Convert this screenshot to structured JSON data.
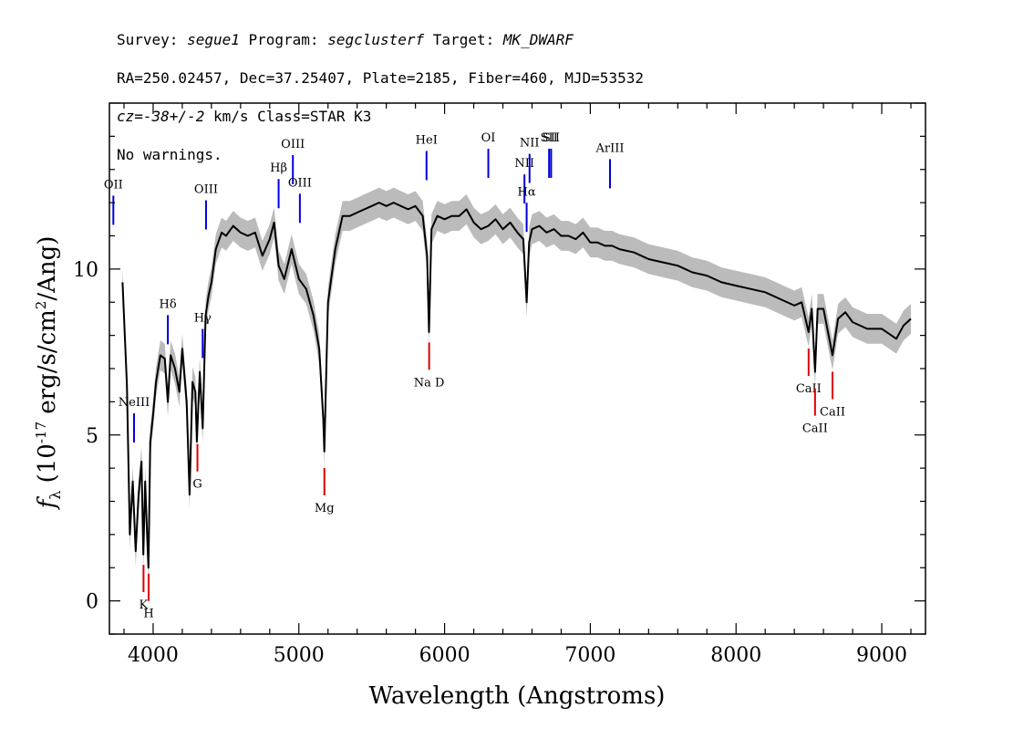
{
  "header": {
    "line1": {
      "survey_label": "Survey: ",
      "survey": "segue1",
      "program_label": " Program: ",
      "program": "segclusterf",
      "target_label": " Target: ",
      "target": "MK_DWARF"
    },
    "line2": "RA=250.02457, Dec=37.25407, Plate=2185, Fiber=460, MJD=53532",
    "line3": {
      "cz_label": "cz",
      "cz_value": "=-38+/-2",
      "rest": " km/s Class=STAR K3"
    },
    "line4": "No warnings."
  },
  "chart_data": {
    "type": "line",
    "xlabel": "Wavelength (Angstroms)",
    "ylabel": "f_λ (10^-17 erg/s/cm^2/Ang)",
    "xlim": [
      3700,
      9300
    ],
    "ylim": [
      -1,
      15
    ],
    "x_ticks": [
      4000,
      5000,
      6000,
      7000,
      8000,
      9000
    ],
    "y_ticks": [
      0,
      5,
      10
    ],
    "grid": false,
    "series": [
      {
        "color": "#000000",
        "x": [
          3790,
          3820,
          3840,
          3860,
          3880,
          3900,
          3920,
          3933,
          3945,
          3960,
          3968,
          3980,
          4000,
          4020,
          4050,
          4080,
          4101,
          4120,
          4150,
          4180,
          4200,
          4230,
          4250,
          4270,
          4290,
          4300,
          4320,
          4340,
          4360,
          4380,
          4400,
          4430,
          4470,
          4500,
          4550,
          4600,
          4650,
          4700,
          4750,
          4800,
          4830,
          4861,
          4900,
          4950,
          5000,
          5050,
          5100,
          5140,
          5167,
          5175,
          5184,
          5200,
          5250,
          5300,
          5350,
          5400,
          5450,
          5500,
          5550,
          5600,
          5650,
          5700,
          5750,
          5800,
          5850,
          5880,
          5893,
          5910,
          5950,
          6000,
          6050,
          6100,
          6150,
          6200,
          6250,
          6300,
          6350,
          6400,
          6450,
          6500,
          6540,
          6563,
          6580,
          6600,
          6650,
          6700,
          6750,
          6800,
          6850,
          6900,
          6950,
          7000,
          7050,
          7100,
          7150,
          7200,
          7300,
          7400,
          7500,
          7600,
          7700,
          7800,
          7900,
          8000,
          8100,
          8200,
          8300,
          8400,
          8450,
          8498,
          8520,
          8542,
          8560,
          8600,
          8662,
          8700,
          8750,
          8800,
          8900,
          9000,
          9100,
          9150,
          9200
        ],
        "y": [
          9.6,
          6.5,
          2.0,
          3.6,
          1.5,
          3.2,
          4.2,
          1.4,
          3.6,
          1.8,
          1.0,
          4.8,
          5.6,
          6.6,
          7.4,
          7.3,
          6.0,
          7.4,
          7.0,
          6.3,
          7.6,
          6.0,
          3.2,
          6.6,
          6.3,
          4.8,
          6.9,
          5.2,
          8.6,
          9.2,
          9.6,
          10.6,
          11.1,
          11.0,
          11.3,
          11.1,
          11.0,
          11.1,
          10.4,
          10.9,
          11.4,
          10.1,
          9.7,
          10.6,
          9.7,
          9.4,
          8.6,
          7.6,
          5.5,
          4.5,
          6.2,
          9.0,
          10.6,
          11.6,
          11.6,
          11.7,
          11.8,
          11.9,
          12.0,
          11.9,
          12.0,
          11.9,
          11.8,
          11.9,
          11.6,
          10.4,
          8.1,
          11.2,
          11.6,
          11.5,
          11.6,
          11.6,
          11.8,
          11.4,
          11.2,
          11.3,
          11.5,
          11.2,
          11.4,
          11.1,
          10.9,
          9.0,
          10.8,
          11.2,
          11.3,
          11.1,
          11.2,
          11.0,
          11.0,
          10.9,
          11.1,
          10.8,
          10.8,
          10.7,
          10.7,
          10.6,
          10.5,
          10.3,
          10.2,
          10.1,
          9.9,
          9.8,
          9.6,
          9.5,
          9.4,
          9.3,
          9.1,
          8.9,
          9.0,
          8.1,
          8.8,
          6.9,
          8.8,
          8.8,
          7.4,
          8.5,
          8.7,
          8.4,
          8.2,
          8.2,
          7.9,
          8.3,
          8.5
        ]
      }
    ],
    "emission_lines": [
      {
        "label": "OII",
        "x": 3727
      },
      {
        "label": "NeIII",
        "x": 3869
      },
      {
        "label": "Hδ",
        "x": 4101
      },
      {
        "label": "Hγ",
        "x": 4340
      },
      {
        "label": "OIII",
        "x": 4363
      },
      {
        "label": "Hβ",
        "x": 4861
      },
      {
        "label": "OIII",
        "x": 4959
      },
      {
        "label": "OIII",
        "x": 5007
      },
      {
        "label": "HeI",
        "x": 5876
      },
      {
        "label": "OI",
        "x": 6300
      },
      {
        "label": "NII",
        "x": 6548
      },
      {
        "label": "Hα",
        "x": 6563
      },
      {
        "label": "NII",
        "x": 6583
      },
      {
        "label": "SII",
        "x": 6717
      },
      {
        "label": "SII",
        "x": 6731
      },
      {
        "label": "ArIII",
        "x": 7135
      }
    ],
    "absorption_lines": [
      {
        "label": "K",
        "x": 3934
      },
      {
        "label": "H",
        "x": 3969
      },
      {
        "label": "G",
        "x": 4304
      },
      {
        "label": "Mg",
        "x": 5175
      },
      {
        "label": "Na D",
        "x": 5894
      },
      {
        "label": "CaII",
        "x": 8498
      },
      {
        "label": "CaII",
        "x": 8542
      },
      {
        "label": "CaII",
        "x": 8662
      }
    ],
    "colors": {
      "flux": "#000000",
      "error_band": "#bbbbbb",
      "emission": "#0000dd",
      "absorption": "#dd0000"
    }
  }
}
